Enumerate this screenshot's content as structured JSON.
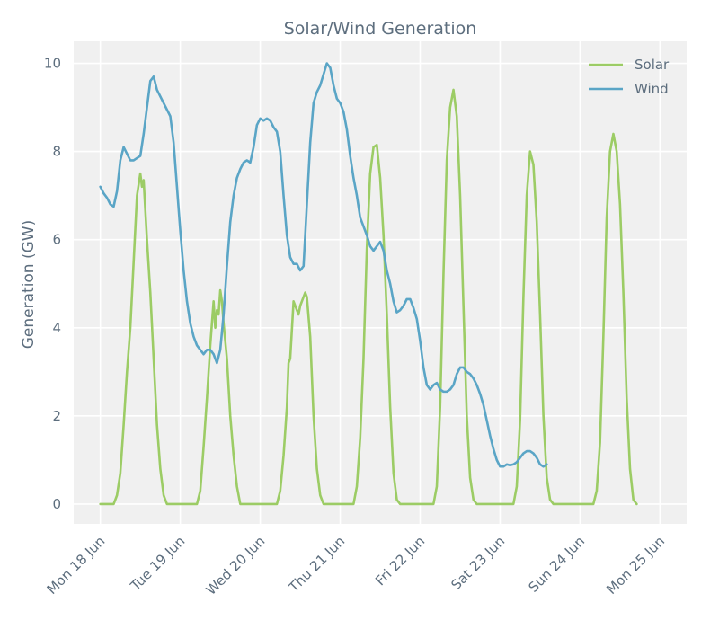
{
  "chart_data": {
    "type": "line",
    "title": "Solar/Wind Generation",
    "ylabel": "Generation (GW)",
    "xlabel": "",
    "ylim": [
      -0.45,
      10.5
    ],
    "yticks": [
      0,
      2,
      4,
      6,
      8,
      10
    ],
    "xticks": [
      {
        "t": 0,
        "label": "Mon 18 Jun"
      },
      {
        "t": 24,
        "label": "Tue 19 Jun"
      },
      {
        "t": 48,
        "label": "Wed 20 Jun"
      },
      {
        "t": 72,
        "label": "Thu 21 Jun"
      },
      {
        "t": 96,
        "label": "Fri 22 Jun"
      },
      {
        "t": 120,
        "label": "Sat 23 Jun"
      },
      {
        "t": 144,
        "label": "Sun 24 Jun"
      },
      {
        "t": 168,
        "label": "Mon 25 Jun"
      }
    ],
    "xlim": [
      -8,
      176
    ],
    "grid": true,
    "legend_position": "top-right",
    "series": [
      {
        "name": "Solar",
        "color": "#9ccc65",
        "points": [
          [
            0,
            0
          ],
          [
            4,
            0
          ],
          [
            5,
            0.2
          ],
          [
            6,
            0.7
          ],
          [
            7,
            1.8
          ],
          [
            8,
            3.0
          ],
          [
            9,
            4.0
          ],
          [
            10,
            5.5
          ],
          [
            11,
            7.0
          ],
          [
            12,
            7.5
          ],
          [
            12.5,
            7.2
          ],
          [
            13,
            7.35
          ],
          [
            14,
            6.0
          ],
          [
            15,
            4.8
          ],
          [
            16,
            3.3
          ],
          [
            17,
            1.8
          ],
          [
            18,
            0.8
          ],
          [
            19,
            0.2
          ],
          [
            20,
            0
          ],
          [
            29,
            0
          ],
          [
            30,
            0.3
          ],
          [
            31,
            1.3
          ],
          [
            32,
            2.4
          ],
          [
            33,
            3.6
          ],
          [
            34,
            4.6
          ],
          [
            34.5,
            4.0
          ],
          [
            35,
            4.4
          ],
          [
            35.5,
            4.3
          ],
          [
            36,
            4.85
          ],
          [
            36.5,
            4.6
          ],
          [
            37,
            4.1
          ],
          [
            38,
            3.3
          ],
          [
            39,
            2.0
          ],
          [
            40,
            1.1
          ],
          [
            41,
            0.4
          ],
          [
            42,
            0
          ],
          [
            53,
            0
          ],
          [
            54,
            0.3
          ],
          [
            55,
            1.1
          ],
          [
            56,
            2.2
          ],
          [
            56.5,
            3.2
          ],
          [
            57,
            3.3
          ],
          [
            58,
            4.6
          ],
          [
            59,
            4.4
          ],
          [
            59.5,
            4.3
          ],
          [
            60,
            4.5
          ],
          [
            61,
            4.7
          ],
          [
            61.5,
            4.8
          ],
          [
            62,
            4.7
          ],
          [
            63,
            3.8
          ],
          [
            64,
            2.0
          ],
          [
            65,
            0.8
          ],
          [
            66,
            0.2
          ],
          [
            67,
            0
          ],
          [
            76,
            0
          ],
          [
            77,
            0.4
          ],
          [
            78,
            1.5
          ],
          [
            79,
            3.3
          ],
          [
            80,
            5.8
          ],
          [
            81,
            7.5
          ],
          [
            82,
            8.1
          ],
          [
            83,
            8.15
          ],
          [
            84,
            7.4
          ],
          [
            85,
            6.1
          ],
          [
            86,
            4.3
          ],
          [
            87,
            2.2
          ],
          [
            88,
            0.7
          ],
          [
            89,
            0.1
          ],
          [
            90,
            0
          ],
          [
            100,
            0
          ],
          [
            101,
            0.4
          ],
          [
            102,
            2.2
          ],
          [
            103,
            5.2
          ],
          [
            104,
            7.8
          ],
          [
            105,
            9.0
          ],
          [
            106,
            9.4
          ],
          [
            107,
            8.8
          ],
          [
            108,
            7.0
          ],
          [
            109,
            4.5
          ],
          [
            110,
            2.0
          ],
          [
            111,
            0.6
          ],
          [
            112,
            0.1
          ],
          [
            113,
            0
          ],
          [
            124,
            0
          ],
          [
            125,
            0.4
          ],
          [
            126,
            1.9
          ],
          [
            127,
            4.7
          ],
          [
            128,
            7.0
          ],
          [
            129,
            8.0
          ],
          [
            130,
            7.7
          ],
          [
            131,
            6.4
          ],
          [
            132,
            4.3
          ],
          [
            133,
            2.0
          ],
          [
            134,
            0.6
          ],
          [
            135,
            0.1
          ],
          [
            136,
            0
          ],
          [
            148,
            0
          ],
          [
            149,
            0.3
          ],
          [
            150,
            1.4
          ],
          [
            151,
            3.8
          ],
          [
            152,
            6.5
          ],
          [
            153,
            8.0
          ],
          [
            154,
            8.4
          ],
          [
            155,
            8.0
          ],
          [
            156,
            6.8
          ],
          [
            157,
            4.8
          ],
          [
            158,
            2.4
          ],
          [
            159,
            0.8
          ],
          [
            160,
            0.1
          ],
          [
            161,
            0
          ]
        ]
      },
      {
        "name": "Wind",
        "color": "#5aa5c6",
        "points": [
          [
            0,
            7.2
          ],
          [
            1,
            7.05
          ],
          [
            2,
            6.95
          ],
          [
            3,
            6.8
          ],
          [
            4,
            6.75
          ],
          [
            5,
            7.1
          ],
          [
            6,
            7.8
          ],
          [
            7,
            8.1
          ],
          [
            8,
            7.95
          ],
          [
            9,
            7.8
          ],
          [
            10,
            7.8
          ],
          [
            11,
            7.85
          ],
          [
            12,
            7.9
          ],
          [
            13,
            8.4
          ],
          [
            14,
            9.0
          ],
          [
            15,
            9.6
          ],
          [
            16,
            9.7
          ],
          [
            17,
            9.4
          ],
          [
            18,
            9.25
          ],
          [
            19,
            9.1
          ],
          [
            20,
            8.95
          ],
          [
            21,
            8.8
          ],
          [
            22,
            8.2
          ],
          [
            23,
            7.2
          ],
          [
            24,
            6.2
          ],
          [
            25,
            5.3
          ],
          [
            26,
            4.6
          ],
          [
            27,
            4.1
          ],
          [
            28,
            3.8
          ],
          [
            29,
            3.6
          ],
          [
            30,
            3.5
          ],
          [
            31,
            3.4
          ],
          [
            32,
            3.5
          ],
          [
            33,
            3.5
          ],
          [
            34,
            3.4
          ],
          [
            35,
            3.2
          ],
          [
            36,
            3.5
          ],
          [
            37,
            4.3
          ],
          [
            38,
            5.4
          ],
          [
            39,
            6.4
          ],
          [
            40,
            7.0
          ],
          [
            41,
            7.4
          ],
          [
            42,
            7.6
          ],
          [
            43,
            7.75
          ],
          [
            44,
            7.8
          ],
          [
            45,
            7.75
          ],
          [
            46,
            8.1
          ],
          [
            47,
            8.6
          ],
          [
            48,
            8.75
          ],
          [
            49,
            8.7
          ],
          [
            50,
            8.75
          ],
          [
            51,
            8.7
          ],
          [
            52,
            8.55
          ],
          [
            53,
            8.45
          ],
          [
            54,
            8.0
          ],
          [
            55,
            7.0
          ],
          [
            56,
            6.1
          ],
          [
            57,
            5.6
          ],
          [
            58,
            5.45
          ],
          [
            59,
            5.45
          ],
          [
            60,
            5.3
          ],
          [
            61,
            5.4
          ],
          [
            62,
            6.8
          ],
          [
            63,
            8.2
          ],
          [
            64,
            9.1
          ],
          [
            65,
            9.35
          ],
          [
            66,
            9.5
          ],
          [
            67,
            9.75
          ],
          [
            68,
            10.0
          ],
          [
            69,
            9.9
          ],
          [
            70,
            9.5
          ],
          [
            71,
            9.2
          ],
          [
            72,
            9.1
          ],
          [
            73,
            8.9
          ],
          [
            74,
            8.5
          ],
          [
            75,
            7.9
          ],
          [
            76,
            7.4
          ],
          [
            77,
            7.0
          ],
          [
            78,
            6.5
          ],
          [
            79,
            6.3
          ],
          [
            80,
            6.1
          ],
          [
            81,
            5.85
          ],
          [
            82,
            5.75
          ],
          [
            83,
            5.85
          ],
          [
            84,
            5.95
          ],
          [
            85,
            5.75
          ],
          [
            86,
            5.3
          ],
          [
            87,
            5.0
          ],
          [
            88,
            4.6
          ],
          [
            89,
            4.35
          ],
          [
            90,
            4.4
          ],
          [
            91,
            4.5
          ],
          [
            92,
            4.65
          ],
          [
            93,
            4.65
          ],
          [
            94,
            4.45
          ],
          [
            95,
            4.2
          ],
          [
            96,
            3.7
          ],
          [
            97,
            3.1
          ],
          [
            98,
            2.7
          ],
          [
            99,
            2.6
          ],
          [
            100,
            2.7
          ],
          [
            101,
            2.75
          ],
          [
            102,
            2.6
          ],
          [
            103,
            2.55
          ],
          [
            104,
            2.55
          ],
          [
            105,
            2.6
          ],
          [
            106,
            2.7
          ],
          [
            107,
            2.95
          ],
          [
            108,
            3.1
          ],
          [
            109,
            3.1
          ],
          [
            110,
            3.0
          ],
          [
            111,
            2.95
          ],
          [
            112,
            2.85
          ],
          [
            113,
            2.7
          ],
          [
            114,
            2.5
          ],
          [
            115,
            2.25
          ],
          [
            116,
            1.9
          ],
          [
            117,
            1.55
          ],
          [
            118,
            1.25
          ],
          [
            119,
            1.0
          ],
          [
            120,
            0.85
          ],
          [
            121,
            0.85
          ],
          [
            122,
            0.9
          ],
          [
            123,
            0.88
          ],
          [
            124,
            0.9
          ],
          [
            125,
            0.95
          ],
          [
            126,
            1.05
          ],
          [
            127,
            1.15
          ],
          [
            128,
            1.2
          ],
          [
            129,
            1.2
          ],
          [
            130,
            1.15
          ],
          [
            131,
            1.05
          ],
          [
            132,
            0.9
          ],
          [
            133,
            0.85
          ],
          [
            134,
            0.9
          ]
        ]
      }
    ]
  }
}
